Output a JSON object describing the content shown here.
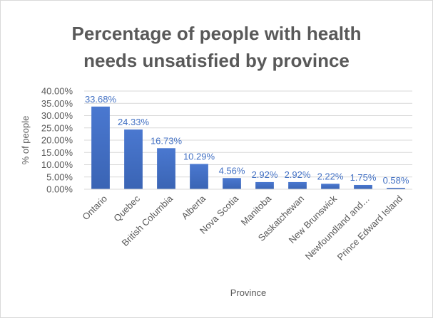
{
  "chart_data": {
    "type": "bar",
    "title_line1": "Percentage of people with health",
    "title_line2": "needs unsatisfied by province",
    "xlabel": "Province",
    "ylabel": "% of people",
    "categories": [
      "Ontario",
      "Quebec",
      "British Columbia",
      "Alberta",
      "Nova Scotia",
      "Manitoba",
      "Saskatchewan",
      "New Brunswick",
      "Newfoundland and…",
      "Prince Edward Island"
    ],
    "values": [
      33.68,
      24.33,
      16.73,
      10.29,
      4.56,
      2.92,
      2.92,
      2.22,
      1.75,
      0.58
    ],
    "data_labels": [
      "33.68%",
      "24.33%",
      "16.73%",
      "10.29%",
      "4.56%",
      "2.92%",
      "2.92%",
      "2.22%",
      "1.75%",
      "0.58%"
    ],
    "y_ticks": [
      0,
      5,
      10,
      15,
      20,
      25,
      30,
      35,
      40
    ],
    "y_tick_labels": [
      "0.00%",
      "5.00%",
      "10.00%",
      "15.00%",
      "20.00%",
      "25.00%",
      "30.00%",
      "35.00%",
      "40.00%"
    ],
    "ylim": [
      0,
      40
    ],
    "grid": true,
    "bar_color": "#4472c4",
    "label_color": "#4472c4",
    "legend": "none"
  }
}
